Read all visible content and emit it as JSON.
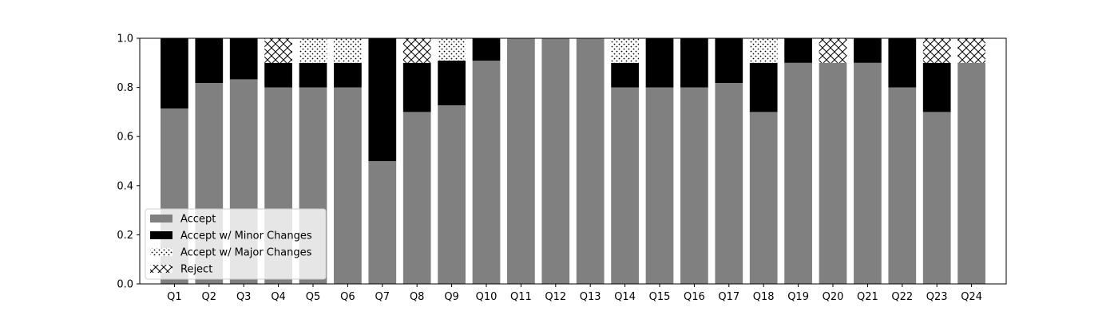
{
  "chart_data": {
    "type": "bar",
    "stacked": true,
    "categories": [
      "Q1",
      "Q2",
      "Q3",
      "Q4",
      "Q5",
      "Q6",
      "Q7",
      "Q8",
      "Q9",
      "Q10",
      "Q11",
      "Q12",
      "Q13",
      "Q14",
      "Q15",
      "Q16",
      "Q17",
      "Q18",
      "Q19",
      "Q20",
      "Q21",
      "Q22",
      "Q23",
      "Q24"
    ],
    "series": [
      {
        "name": "Accept",
        "fill": "#808080",
        "pattern": "solid",
        "values": [
          0.714,
          0.818,
          0.833,
          0.8,
          0.8,
          0.8,
          0.5,
          0.7,
          0.727,
          0.909,
          1.0,
          1.0,
          1.0,
          0.8,
          0.8,
          0.8,
          0.818,
          0.7,
          0.9,
          0.9,
          0.9,
          0.8,
          0.7,
          0.9
        ]
      },
      {
        "name": "Accept w/ Minor Changes",
        "fill": "#000000",
        "pattern": "solid",
        "values": [
          0.286,
          0.182,
          0.167,
          0.1,
          0.1,
          0.1,
          0.5,
          0.2,
          0.182,
          0.091,
          0.0,
          0.0,
          0.0,
          0.1,
          0.2,
          0.2,
          0.182,
          0.2,
          0.1,
          0.0,
          0.1,
          0.2,
          0.2,
          0.0
        ]
      },
      {
        "name": "Accept w/ Major Changes",
        "fill": "#ffffff",
        "pattern": "dots",
        "values": [
          0.0,
          0.0,
          0.0,
          0.0,
          0.1,
          0.1,
          0.0,
          0.0,
          0.091,
          0.0,
          0.0,
          0.0,
          0.0,
          0.1,
          0.0,
          0.0,
          0.0,
          0.1,
          0.0,
          0.0,
          0.0,
          0.0,
          0.0,
          0.0
        ]
      },
      {
        "name": "Reject",
        "fill": "#ffffff",
        "pattern": "crosshatch",
        "values": [
          0.0,
          0.0,
          0.0,
          0.1,
          0.0,
          0.0,
          0.0,
          0.1,
          0.0,
          0.0,
          0.0,
          0.0,
          0.0,
          0.0,
          0.0,
          0.0,
          0.0,
          0.0,
          0.0,
          0.1,
          0.0,
          0.0,
          0.1,
          0.1
        ]
      }
    ],
    "title": "",
    "xlabel": "",
    "ylabel": "",
    "ylim": [
      0.0,
      1.0
    ],
    "yticks": [
      "0.0",
      "0.2",
      "0.4",
      "0.6",
      "0.8",
      "1.0"
    ],
    "grid": false,
    "legend_position": "lower-left"
  }
}
